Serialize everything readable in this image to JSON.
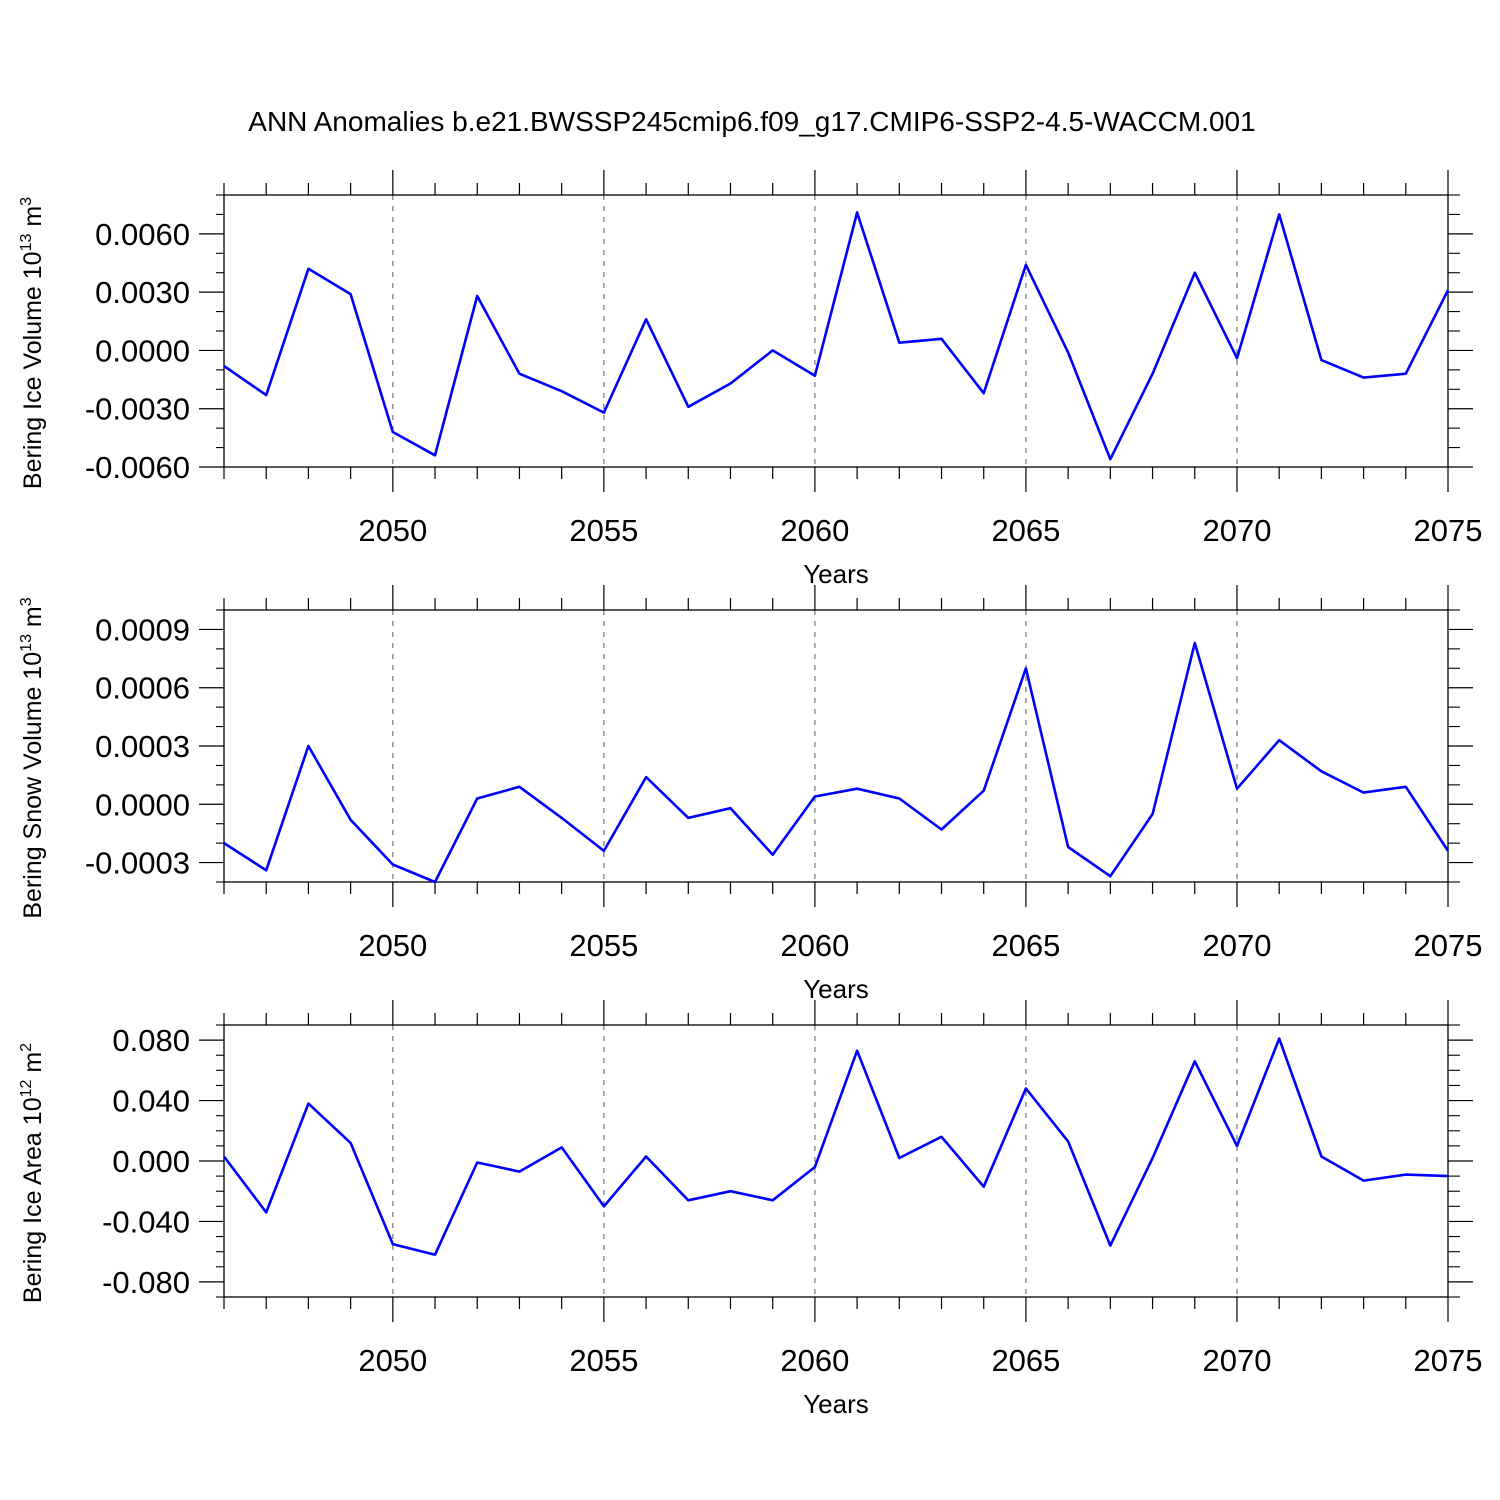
{
  "title": "ANN Anomalies b.e21.BWSSP245cmip6.f09_g17.CMIP6-SSP2-4.5-WACCM.001",
  "colors": {
    "line": "#0000ff",
    "axis": "#000000",
    "grid": "#808080"
  },
  "chart_data": [
    {
      "type": "line",
      "ylabel_text": "Bering Ice Volume 10",
      "ylabel_exp": "13",
      "ylabel_unit": " m",
      "ylabel_unit_exp": "3",
      "xlabel": "Years",
      "xlim": [
        2046,
        2075
      ],
      "ylim": [
        -0.006,
        0.008
      ],
      "yticks": [
        -0.006,
        -0.003,
        0.0,
        0.003,
        0.006
      ],
      "ytick_labels": [
        "-0.0060",
        "-0.0030",
        "0.0000",
        "0.0030",
        "0.0060"
      ],
      "yminor_step": 0.001,
      "xticks": [
        2050,
        2055,
        2060,
        2065,
        2070,
        2075
      ],
      "xtick_labels": [
        "2050",
        "2055",
        "2060",
        "2065",
        "2070",
        "2075"
      ],
      "grid_x": [
        2050,
        2055,
        2060,
        2065,
        2070
      ],
      "x": [
        2046,
        2047,
        2048,
        2049,
        2050,
        2051,
        2052,
        2053,
        2054,
        2055,
        2056,
        2057,
        2058,
        2059,
        2060,
        2061,
        2062,
        2063,
        2064,
        2065,
        2066,
        2067,
        2068,
        2069,
        2070,
        2071,
        2072,
        2073,
        2074,
        2075
      ],
      "series": [
        {
          "values": [
            -0.0008,
            -0.0023,
            0.0042,
            0.0029,
            -0.0042,
            -0.0054,
            0.0028,
            -0.0012,
            -0.0021,
            -0.0032,
            0.0016,
            -0.0029,
            -0.0017,
            0.0,
            -0.0013,
            0.0071,
            0.0004,
            0.0006,
            -0.0022,
            0.0044,
            -0.0001,
            -0.0056,
            -0.0012,
            0.004,
            -0.0004,
            0.007,
            -0.0005,
            -0.0014,
            -0.0012,
            0.0031
          ]
        }
      ]
    },
    {
      "type": "line",
      "ylabel_text": "Bering Snow Volume 10",
      "ylabel_exp": "13",
      "ylabel_unit": " m",
      "ylabel_unit_exp": "3",
      "xlabel": "Years",
      "xlim": [
        2046,
        2075
      ],
      "ylim": [
        -0.0004,
        0.001
      ],
      "yticks": [
        -0.0003,
        0.0,
        0.0003,
        0.0006,
        0.0009
      ],
      "ytick_labels": [
        "-0.0003",
        "0.0000",
        "0.0003",
        "0.0006",
        "0.0009"
      ],
      "yminor_step": 0.0001,
      "xticks": [
        2050,
        2055,
        2060,
        2065,
        2070,
        2075
      ],
      "xtick_labels": [
        "2050",
        "2055",
        "2060",
        "2065",
        "2070",
        "2075"
      ],
      "grid_x": [
        2050,
        2055,
        2060,
        2065,
        2070
      ],
      "x": [
        2046,
        2047,
        2048,
        2049,
        2050,
        2051,
        2052,
        2053,
        2054,
        2055,
        2056,
        2057,
        2058,
        2059,
        2060,
        2061,
        2062,
        2063,
        2064,
        2065,
        2066,
        2067,
        2068,
        2069,
        2070,
        2071,
        2072,
        2073,
        2074,
        2075
      ],
      "series": [
        {
          "values": [
            -0.0002,
            -0.00034,
            0.0003,
            -8e-05,
            -0.00031,
            -0.0004,
            3e-05,
            9e-05,
            -7e-05,
            -0.00024,
            0.00014,
            -7e-05,
            -2e-05,
            -0.00026,
            4e-05,
            8e-05,
            3e-05,
            -0.00013,
            7e-05,
            0.0007,
            -0.00022,
            -0.00037,
            -5e-05,
            0.00083,
            8e-05,
            0.00033,
            0.00017,
            6e-05,
            9e-05,
            -0.00024
          ]
        }
      ]
    },
    {
      "type": "line",
      "ylabel_text": "Bering Ice Area 10",
      "ylabel_exp": "12",
      "ylabel_unit": " m",
      "ylabel_unit_exp": "2",
      "xlabel": "Years",
      "xlim": [
        2046,
        2075
      ],
      "ylim": [
        -0.09,
        0.09
      ],
      "yticks": [
        -0.08,
        -0.04,
        0.0,
        0.04,
        0.08
      ],
      "ytick_labels": [
        "-0.080",
        "-0.040",
        "0.000",
        "0.040",
        "0.080"
      ],
      "yminor_step": 0.01,
      "xticks": [
        2050,
        2055,
        2060,
        2065,
        2070,
        2075
      ],
      "xtick_labels": [
        "2050",
        "2055",
        "2060",
        "2065",
        "2070",
        "2075"
      ],
      "grid_x": [
        2050,
        2055,
        2060,
        2065,
        2070
      ],
      "x": [
        2046,
        2047,
        2048,
        2049,
        2050,
        2051,
        2052,
        2053,
        2054,
        2055,
        2056,
        2057,
        2058,
        2059,
        2060,
        2061,
        2062,
        2063,
        2064,
        2065,
        2066,
        2067,
        2068,
        2069,
        2070,
        2071,
        2072,
        2073,
        2074,
        2075
      ],
      "series": [
        {
          "values": [
            0.003,
            -0.034,
            0.038,
            0.012,
            -0.055,
            -0.062,
            -0.001,
            -0.007,
            0.009,
            -0.03,
            0.003,
            -0.026,
            -0.02,
            -0.026,
            -0.004,
            0.073,
            0.002,
            0.016,
            -0.017,
            0.048,
            0.013,
            -0.056,
            0.002,
            0.066,
            0.01,
            0.081,
            0.003,
            -0.013,
            -0.009,
            -0.01
          ]
        }
      ]
    }
  ]
}
